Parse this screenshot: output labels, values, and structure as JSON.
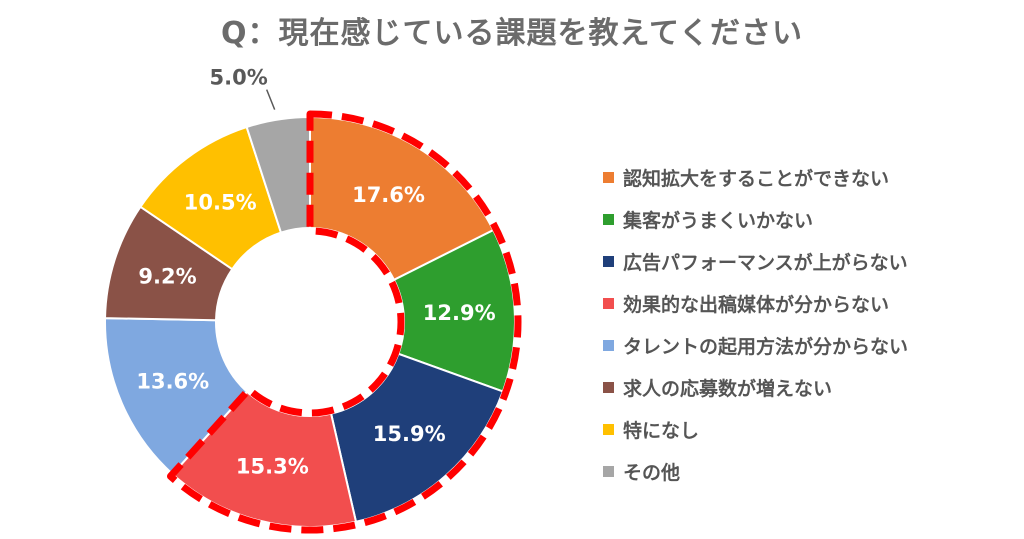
{
  "title": "Q：現在感じている課題を教えてください",
  "chart_data": {
    "type": "pie",
    "title": "Q：現在感じている課題を教えてください",
    "donut": true,
    "categories": [
      "認知拡大をすることができない",
      "集客がうまくいかない",
      "広告パフォーマンスが上がらない",
      "効果的な出稿媒体が分からない",
      "タレントの起用方法が分からない",
      "求人の応募数が増えない",
      "特になし",
      "その他"
    ],
    "values": [
      17.6,
      12.9,
      15.9,
      15.3,
      13.6,
      9.2,
      10.5,
      5.0
    ],
    "labels": [
      "17.6%",
      "12.9%",
      "15.9%",
      "15.3%",
      "13.6%",
      "9.2%",
      "10.5%",
      "5.0%"
    ],
    "colors": [
      "#ED7D31",
      "#2E9E2E",
      "#1F3F7A",
      "#F24E4E",
      "#7FA8E0",
      "#8A5247",
      "#FFC000",
      "#A6A6A6"
    ],
    "label_text_colors": [
      "#ffffff",
      "#ffffff",
      "#ffffff",
      "#ffffff",
      "#ffffff",
      "#ffffff",
      "#ffffff",
      "#595959"
    ],
    "legend_position": "right",
    "highlight": {
      "description": "red dashed outline around the first four segments",
      "segments": [
        0,
        1,
        2,
        3
      ],
      "color": "#FF0000"
    }
  }
}
